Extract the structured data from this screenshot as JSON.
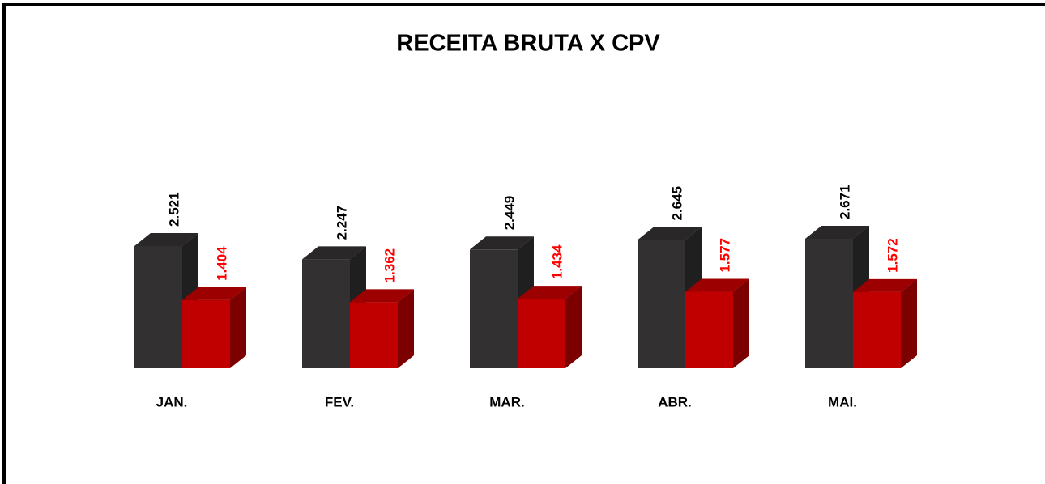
{
  "chart_data": {
    "type": "bar3d",
    "title": "RECEITA BRUTA X CPV",
    "categories": [
      "JAN.",
      "FEV.",
      "MAR.",
      "ABR.",
      "MAI."
    ],
    "series": [
      {
        "color": "#323031",
        "label_color": "#000000",
        "values": [
          2521,
          2247,
          2449,
          2645,
          2671
        ],
        "value_labels": [
          "2.521",
          "2.247",
          "2.449",
          "2.645",
          "2.671"
        ]
      },
      {
        "color": "#c00000",
        "label_color": "#ff0000",
        "values": [
          1404,
          1362,
          1434,
          1577,
          1572
        ],
        "value_labels": [
          "1.404",
          "1.362",
          "1.434",
          "1.577",
          "1.572"
        ]
      }
    ]
  }
}
